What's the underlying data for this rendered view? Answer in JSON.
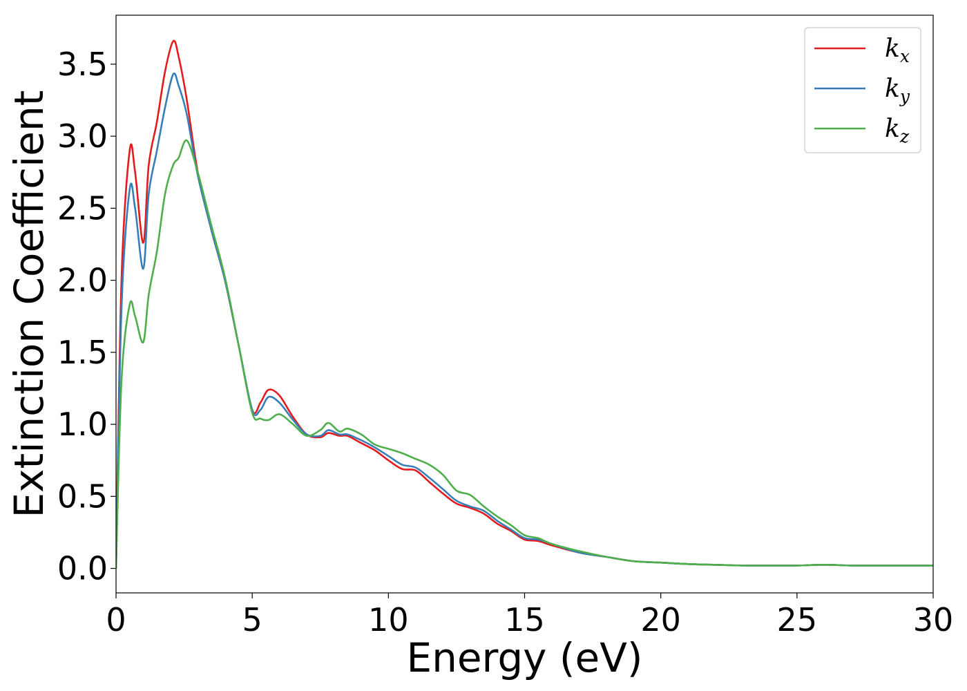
{
  "chart_data": {
    "type": "line",
    "title": "",
    "xlabel": "Energy (eV)",
    "ylabel": "Extinction Coefficient",
    "xlim": [
      0,
      30
    ],
    "ylim": [
      -0.17,
      3.84
    ],
    "x_ticks": [
      0,
      5,
      10,
      15,
      20,
      25,
      30
    ],
    "x_tick_labels": [
      "0",
      "5",
      "10",
      "15",
      "20",
      "25",
      "30"
    ],
    "y_ticks": [
      0.0,
      0.5,
      1.0,
      1.5,
      2.0,
      2.5,
      3.0,
      3.5
    ],
    "y_tick_labels": [
      "0.0",
      "0.5",
      "1.0",
      "1.5",
      "2.0",
      "2.5",
      "3.0",
      "3.5"
    ],
    "grid": false,
    "legend_position": "top-right",
    "series": [
      {
        "name": "k_x",
        "label_base": "k",
        "label_sub": "x",
        "color": "#e41a1c",
        "x": [
          0,
          0.2,
          0.5,
          0.7,
          1.0,
          1.2,
          1.5,
          1.8,
          2.1,
          2.3,
          2.6,
          3.0,
          3.5,
          4.0,
          4.5,
          5.0,
          5.3,
          5.6,
          6.0,
          6.5,
          7.0,
          7.5,
          7.8,
          8.2,
          8.5,
          9.0,
          9.5,
          10.0,
          10.5,
          11.0,
          11.5,
          12.0,
          12.5,
          13.0,
          13.5,
          14.0,
          14.5,
          15.0,
          15.5,
          16.0,
          17.0,
          18.0,
          19.0,
          20.0,
          21.0,
          22.0,
          23.0,
          24.0,
          25.0,
          26.0,
          27.0,
          28.0,
          29.0,
          30.0
        ],
        "values": [
          0.0,
          2.0,
          2.9,
          2.75,
          2.26,
          2.8,
          3.1,
          3.45,
          3.66,
          3.55,
          3.25,
          2.75,
          2.35,
          2.0,
          1.55,
          1.1,
          1.15,
          1.24,
          1.2,
          1.05,
          0.93,
          0.91,
          0.94,
          0.92,
          0.92,
          0.87,
          0.82,
          0.75,
          0.69,
          0.68,
          0.6,
          0.52,
          0.45,
          0.42,
          0.38,
          0.31,
          0.26,
          0.2,
          0.19,
          0.16,
          0.11,
          0.08,
          0.05,
          0.04,
          0.03,
          0.025,
          0.02,
          0.02,
          0.02,
          0.025,
          0.02,
          0.02,
          0.02,
          0.02
        ]
      },
      {
        "name": "k_y",
        "label_base": "k",
        "label_sub": "y",
        "color": "#377eb8",
        "x": [
          0,
          0.2,
          0.5,
          0.7,
          1.0,
          1.2,
          1.5,
          1.8,
          2.1,
          2.3,
          2.6,
          3.0,
          3.5,
          4.0,
          4.5,
          5.0,
          5.3,
          5.6,
          6.0,
          6.5,
          7.0,
          7.5,
          7.8,
          8.2,
          8.5,
          9.0,
          9.5,
          10.0,
          10.5,
          11.0,
          11.5,
          12.0,
          12.5,
          13.0,
          13.5,
          14.0,
          14.5,
          15.0,
          15.5,
          16.0,
          17.0,
          18.0,
          19.0,
          20.0,
          21.0,
          22.0,
          23.0,
          24.0,
          25.0,
          26.0,
          27.0,
          28.0,
          29.0,
          30.0
        ],
        "values": [
          0.0,
          1.8,
          2.63,
          2.5,
          2.08,
          2.6,
          2.9,
          3.2,
          3.43,
          3.35,
          3.15,
          2.73,
          2.35,
          2.0,
          1.55,
          1.1,
          1.1,
          1.19,
          1.15,
          1.03,
          0.93,
          0.92,
          0.96,
          0.93,
          0.93,
          0.89,
          0.84,
          0.78,
          0.72,
          0.7,
          0.63,
          0.55,
          0.47,
          0.43,
          0.4,
          0.33,
          0.27,
          0.21,
          0.2,
          0.17,
          0.11,
          0.08,
          0.05,
          0.04,
          0.03,
          0.025,
          0.02,
          0.02,
          0.02,
          0.025,
          0.02,
          0.02,
          0.02,
          0.02
        ]
      },
      {
        "name": "k_z",
        "label_base": "k",
        "label_sub": "z",
        "color": "#4daf4a",
        "x": [
          0,
          0.2,
          0.5,
          0.7,
          1.0,
          1.2,
          1.5,
          1.8,
          2.1,
          2.3,
          2.6,
          3.0,
          3.5,
          4.0,
          4.5,
          5.0,
          5.3,
          5.6,
          6.0,
          6.5,
          7.0,
          7.5,
          7.8,
          8.2,
          8.5,
          9.0,
          9.5,
          10.0,
          10.5,
          11.0,
          11.5,
          12.0,
          12.5,
          13.0,
          13.5,
          14.0,
          14.5,
          15.0,
          15.5,
          16.0,
          17.0,
          18.0,
          19.0,
          20.0,
          21.0,
          22.0,
          23.0,
          24.0,
          25.0,
          26.0,
          27.0,
          28.0,
          29.0,
          30.0
        ],
        "values": [
          0.0,
          1.3,
          1.83,
          1.75,
          1.57,
          1.9,
          2.2,
          2.6,
          2.8,
          2.85,
          2.97,
          2.75,
          2.38,
          2.02,
          1.55,
          1.08,
          1.04,
          1.03,
          1.07,
          1.0,
          0.92,
          0.96,
          1.01,
          0.95,
          0.97,
          0.93,
          0.86,
          0.83,
          0.8,
          0.76,
          0.72,
          0.65,
          0.54,
          0.51,
          0.43,
          0.36,
          0.3,
          0.23,
          0.21,
          0.17,
          0.12,
          0.08,
          0.05,
          0.04,
          0.03,
          0.025,
          0.02,
          0.02,
          0.02,
          0.025,
          0.02,
          0.02,
          0.02,
          0.02
        ]
      }
    ]
  }
}
